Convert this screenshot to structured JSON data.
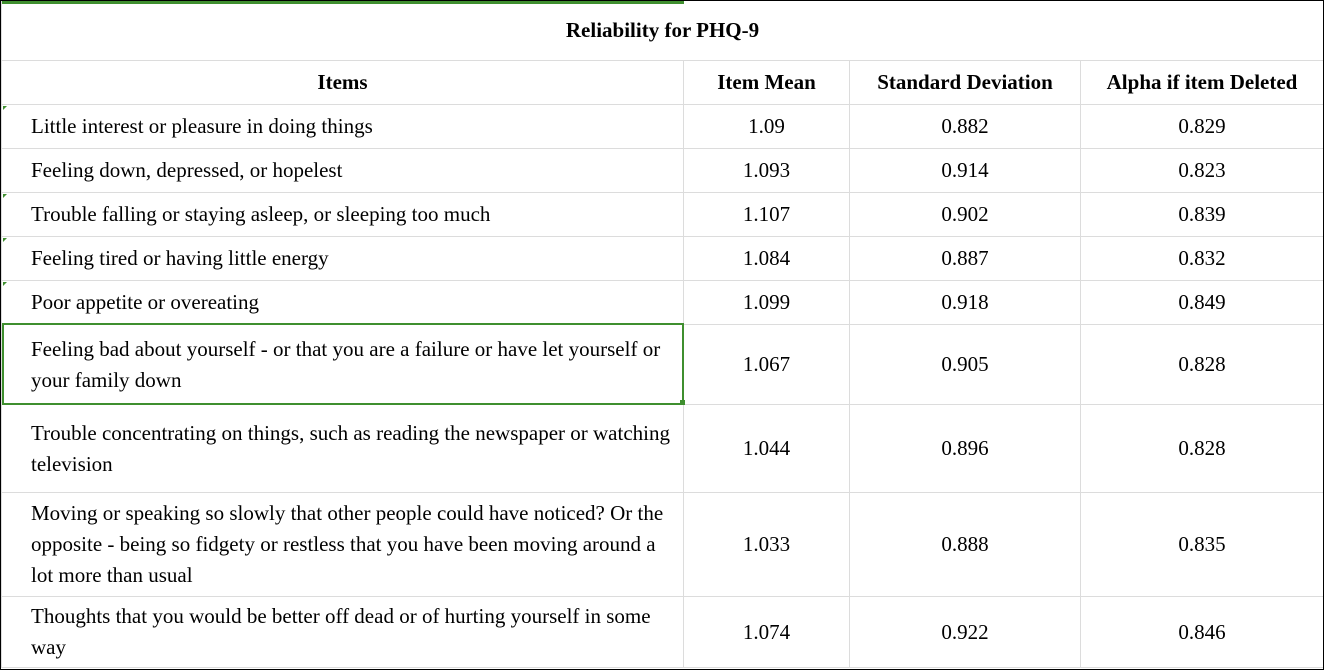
{
  "table": {
    "title": "Reliability for PHQ-9",
    "headers": [
      "Items",
      "Item Mean",
      "Standard Deviation",
      "Alpha if item Deleted"
    ],
    "rows": [
      {
        "item": "Little interest or pleasure in doing things",
        "mean": "1.09",
        "sd": "0.882",
        "alpha": "0.829"
      },
      {
        "item": "Feeling down, depressed, or hopelest",
        "mean": "1.093",
        "sd": "0.914",
        "alpha": "0.823"
      },
      {
        "item": "Trouble falling or staying asleep, or sleeping too much",
        "mean": "1.107",
        "sd": "0.902",
        "alpha": "0.839"
      },
      {
        "item": "Feeling tired or having little energy",
        "mean": "1.084",
        "sd": "0.887",
        "alpha": "0.832"
      },
      {
        "item": "Poor appetite or overeating",
        "mean": "1.099",
        "sd": "0.918",
        "alpha": "0.849"
      },
      {
        "item": "Feeling bad about yourself - or that you are a failure or have let yourself or your family down",
        "mean": "1.067",
        "sd": "0.905",
        "alpha": "0.828"
      },
      {
        "item": "Trouble concentrating on things, such as reading the newspaper or watching television",
        "mean": "1.044",
        "sd": "0.896",
        "alpha": "0.828"
      },
      {
        "item": "Moving or speaking so slowly that other people could have noticed? Or the opposite - being so fidgety or restless that you have been moving around a lot more than usual",
        "mean": "1.033",
        "sd": "0.888",
        "alpha": "0.835"
      },
      {
        "item": "Thoughts that you would be better off dead or of hurting yourself in some way",
        "mean": "1.074",
        "sd": "0.922",
        "alpha": "0.846"
      }
    ]
  },
  "colors": {
    "selection": "#3f8f2f",
    "gridline": "#dcdcdc"
  }
}
